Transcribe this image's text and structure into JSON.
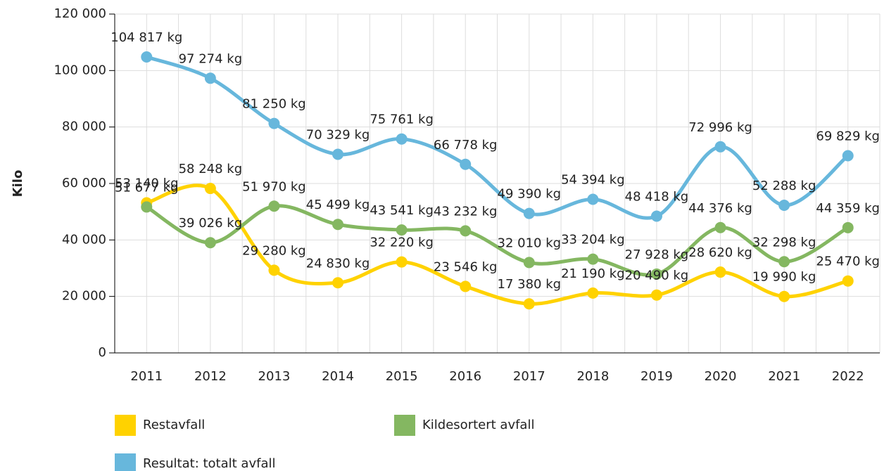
{
  "chart_data": {
    "type": "line",
    "ylabel": "Kilo",
    "categories": [
      "2011",
      "2012",
      "2013",
      "2014",
      "2015",
      "2016",
      "2017",
      "2018",
      "2019",
      "2020",
      "2021",
      "2022"
    ],
    "ylim": [
      0,
      120000
    ],
    "yticks": [
      {
        "value": 0,
        "label": "0"
      },
      {
        "value": 20000,
        "label": "20 000"
      },
      {
        "value": 40000,
        "label": "40 000"
      },
      {
        "value": 60000,
        "label": "60 000"
      },
      {
        "value": 80000,
        "label": "80 000"
      },
      {
        "value": 100000,
        "label": "100 000"
      },
      {
        "value": 120000,
        "label": "120 000"
      }
    ],
    "grid": true,
    "smooth": true,
    "legend": "bottom",
    "series": [
      {
        "name": "Restavfall",
        "color": "#ffd200",
        "values": [
          53140,
          58248,
          29280,
          24830,
          32220,
          23546,
          17380,
          21190,
          20490,
          28620,
          19990,
          25470
        ],
        "value_labels": [
          "53 140 kg",
          "58 248 kg",
          "29 280 kg",
          "24 830 kg",
          "32 220 kg",
          "23 546 kg",
          "17 380 kg",
          "21 190 kg",
          "20 490 kg",
          "28 620 kg",
          "19 990 kg",
          "25 470 kg"
        ]
      },
      {
        "name": "Kildesortert avfall",
        "color": "#84b761",
        "values": [
          51677,
          39026,
          51970,
          45499,
          43541,
          43232,
          32010,
          33204,
          27928,
          44376,
          32298,
          44359
        ],
        "value_labels": [
          "51 677 kg",
          "39 026 kg",
          "51 970 kg",
          "45 499 kg",
          "43 541 kg",
          "43 232 kg",
          "32 010 kg",
          "33 204 kg",
          "27 928 kg",
          "44 376 kg",
          "32 298 kg",
          "44 359 kg"
        ]
      },
      {
        "name": "Resultat: totalt avfall",
        "color": "#67b7dc",
        "values": [
          104817,
          97274,
          81250,
          70329,
          75761,
          66778,
          49390,
          54394,
          48418,
          72996,
          52288,
          69829
        ],
        "value_labels": [
          "104 817 kg",
          "97 274 kg",
          "81 250 kg",
          "70 329 kg",
          "75 761 kg",
          "66 778 kg",
          "49 390 kg",
          "54 394 kg",
          "48 418 kg",
          "72 996 kg",
          "52 288 kg",
          "69 829 kg"
        ]
      }
    ]
  }
}
